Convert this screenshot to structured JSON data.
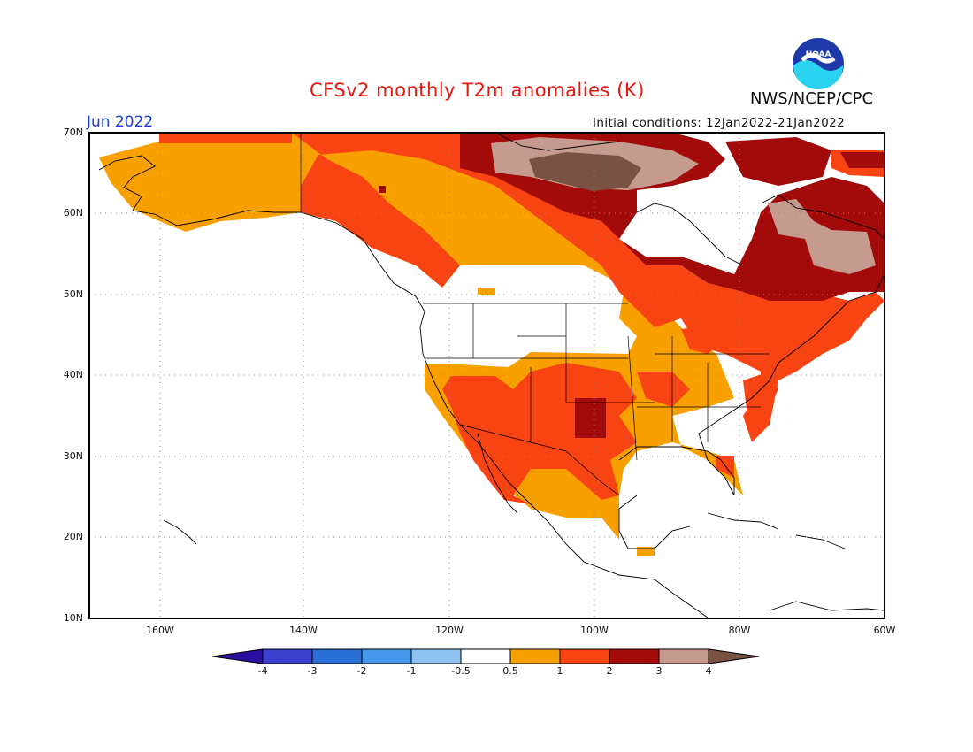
{
  "title": "CFSv2 monthly T2m anomalies (K)",
  "valid_month": "Jun 2022",
  "initial_conditions": "Initial conditions: 12Jan2022-21Jan2022",
  "agency": "NWS/NCEP/CPC",
  "logo_text": "NOAA",
  "map": {
    "lon_range": [
      -172,
      -60
    ],
    "lat_range": [
      10,
      70
    ],
    "lat_ticks": [
      "70N",
      "60N",
      "50N",
      "40N",
      "30N",
      "20N",
      "10N"
    ],
    "lon_ticks": [
      "160W",
      "140W",
      "120W",
      "100W",
      "80W",
      "60W"
    ],
    "grid": "dotted, every 10 degrees",
    "background": "#ffffff",
    "coastlines_color": "#000000"
  },
  "colorbar": {
    "levels": [
      "-4",
      "-3",
      "-2",
      "-1",
      "-0.5",
      "0.5",
      "1",
      "2",
      "3",
      "4"
    ],
    "colors": [
      "#2a0fa0",
      "#3d3fcf",
      "#2a6fd6",
      "#4597ea",
      "#8ec2f2",
      "#ffffff",
      "#f7a000",
      "#f84412",
      "#a30b0b",
      "#c49b8e",
      "#7a5244"
    ],
    "extend": "both"
  },
  "anomaly_regions": [
    {
      "category": "0.5 to 1",
      "color": "#f7a000",
      "area": "Western Alaska, central Canada Prairies, Mexico interior, Southeast US, Rockies"
    },
    {
      "category": "1 to 2",
      "color": "#f84412",
      "area": "Yukon, Northern Canada, Southwest US, Great Plains, Northeast US, Quebec"
    },
    {
      "category": "2 to 3",
      "color": "#a30b0b",
      "area": "Northern Canada, Labrador/Quebec, Oklahoma/Texas Panhandle"
    },
    {
      "category": "3 to 4",
      "color": "#c49b8e",
      "area": "Nunavut mainland, Labrador"
    },
    {
      "category": "> 4",
      "color": "#7a5244",
      "area": "Central Nunavut"
    }
  ]
}
